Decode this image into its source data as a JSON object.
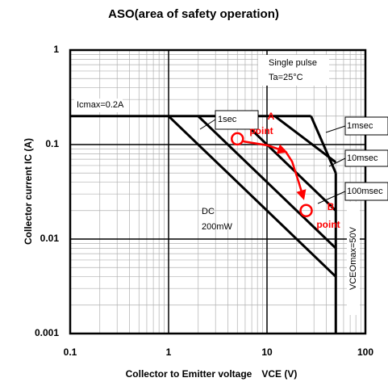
{
  "chart_data": {
    "type": "line",
    "title": "ASO(area of safety operation)",
    "x_label": "Collector to Emitter voltage　VCE (V)",
    "y_label": "Collector current  IC (A)",
    "log_x": true,
    "log_y": true,
    "grid": true,
    "xlim": [
      0.1,
      100
    ],
    "ylim": [
      0.001,
      1
    ],
    "xticks": [
      0.1,
      1,
      10,
      100
    ],
    "yticks": [
      0.001,
      0.01,
      0.1,
      1
    ],
    "series": [
      {
        "name": "Icmax=0.2A",
        "color": "#000000",
        "x": [
          0.1,
          28
        ],
        "values": [
          0.2,
          0.2
        ]
      },
      {
        "name": "DC",
        "color": "#000000",
        "x": [
          1,
          50
        ],
        "values": [
          0.2,
          0.004
        ]
      },
      {
        "name": "1sec",
        "color": "#000000",
        "x": [
          2,
          50
        ],
        "values": [
          0.2,
          0.008
        ]
      },
      {
        "name": "100msec",
        "color": "#000000",
        "x": [
          5,
          50
        ],
        "values": [
          0.2,
          0.02
        ]
      },
      {
        "name": "10msec",
        "color": "#000000",
        "x": [
          12,
          50
        ],
        "values": [
          0.2,
          0.065
        ]
      },
      {
        "name": "1msec",
        "color": "#000000",
        "x": [
          28,
          50
        ],
        "values": [
          0.2,
          0.05
        ]
      },
      {
        "name": "VCEOmax=50V",
        "color": "#000000",
        "x": [
          50,
          50
        ],
        "values": [
          0.05,
          0.001
        ]
      }
    ],
    "annotations": [
      "Single pulse",
      "Ta=25°C",
      "200mW",
      "A",
      "point",
      "B",
      "point"
    ],
    "markers": {
      "color": "#ff0000",
      "x": [
        5,
        25
      ],
      "values": [
        0.115,
        0.02
      ]
    },
    "arrows": [
      {
        "color": "#ff0000",
        "x": [
          5.75,
          10.2,
          15.5
        ],
        "values": [
          0.108,
          0.098,
          0.084
        ]
      },
      {
        "color": "#ff0000",
        "x": [
          15.5,
          18,
          21,
          23.5
        ],
        "values": [
          0.084,
          0.066,
          0.04,
          0.027
        ]
      }
    ]
  }
}
